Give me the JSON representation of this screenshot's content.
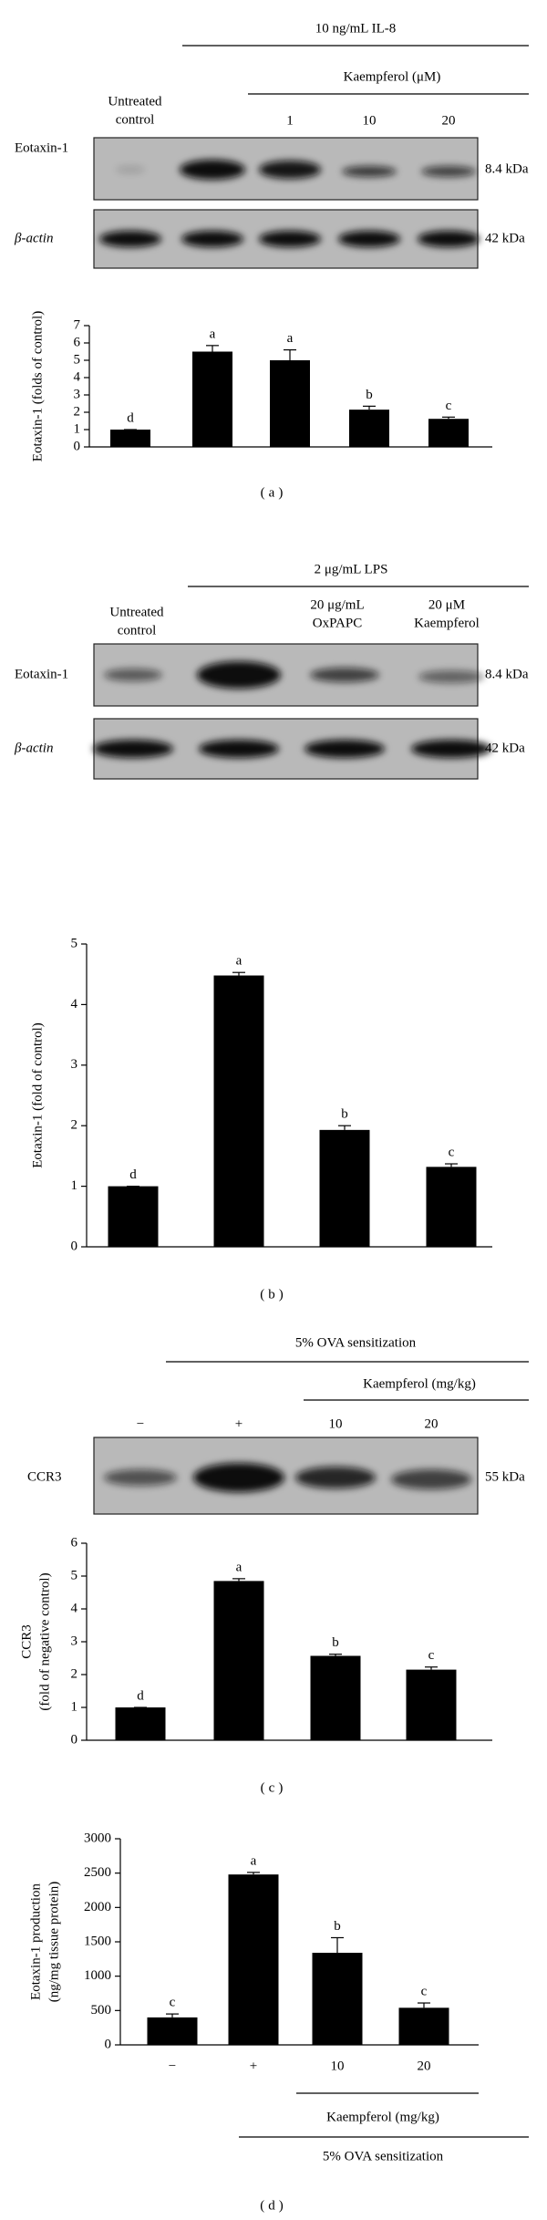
{
  "blots": [
    {
      "header": "10 ng/mL IL-8",
      "subheader": "Kaempferol (μM)",
      "lanes": [
        [
          "Untreated",
          "control"
        ],
        "1",
        "10",
        "20"
      ],
      "rows": [
        {
          "name": "Eotaxin-1",
          "size": "8.4 kDa"
        },
        {
          "name": "β-actin",
          "size": "42 kDa"
        }
      ]
    },
    {
      "header": "2 μg/mL LPS",
      "lanes": [
        [
          "Untreated",
          "control"
        ],
        [
          "20 μg/mL",
          "OxPAPC"
        ],
        [
          "20 μM",
          "Kaempferol"
        ]
      ],
      "rows": [
        {
          "name": "Eotaxin-1",
          "size": "8.4 kDa"
        },
        {
          "name": "β-actin",
          "size": "42 kDa"
        }
      ]
    },
    {
      "header": "5% OVA sensitization",
      "subheader": "Kaempferol (mg/kg)",
      "lanes": [
        "−",
        "+",
        "10",
        "20"
      ],
      "rows": [
        {
          "name": "CCR3",
          "size": "55 kDa"
        }
      ]
    }
  ],
  "chart_data": [
    {
      "type": "bar",
      "ylabel": "Eotaxin-1 (folds of control)",
      "categories": [
        null,
        null,
        null,
        null,
        null
      ],
      "values": [
        1,
        5.5,
        5.0,
        2.15,
        1.62
      ],
      "errors": [
        0,
        0.35,
        0.6,
        0.2,
        0.1
      ],
      "letters": [
        "d",
        "a",
        "a",
        "b",
        "c"
      ],
      "ylim": [
        0,
        7
      ],
      "yticks": [
        0,
        1,
        2,
        3,
        4,
        5,
        6,
        7
      ],
      "color": "#000000",
      "caption": "(a)"
    },
    {
      "type": "bar",
      "ylabel": "Eotaxin-1 (fold of control)",
      "categories": [
        null,
        null,
        null,
        null
      ],
      "values": [
        1,
        4.48,
        1.93,
        1.32
      ],
      "errors": [
        0,
        0.05,
        0.07,
        0.05
      ],
      "letters": [
        "d",
        "a",
        "b",
        "c"
      ],
      "ylim": [
        0,
        5
      ],
      "yticks": [
        0,
        1,
        2,
        3,
        4,
        5
      ],
      "color": "#000000",
      "caption": "(b)"
    },
    {
      "type": "bar",
      "ylabel": [
        "CCR3",
        "(fold of negative control)"
      ],
      "categories": [
        null,
        null,
        null,
        null
      ],
      "values": [
        1,
        4.85,
        2.57,
        2.15
      ],
      "errors": [
        0,
        0.07,
        0.05,
        0.08
      ],
      "letters": [
        "d",
        "a",
        "b",
        "c"
      ],
      "ylim": [
        0,
        6
      ],
      "yticks": [
        0,
        1,
        2,
        3,
        4,
        5,
        6
      ],
      "color": "#000000",
      "caption": "(c)"
    },
    {
      "type": "bar",
      "ylabel": [
        "Eotaxin-1 production",
        "(ng/mg tissue protein)"
      ],
      "categories": [
        "−",
        "+",
        "10",
        "20"
      ],
      "values": [
        400,
        2480,
        1340,
        540
      ],
      "errors": [
        50,
        30,
        220,
        70
      ],
      "letters": [
        "c",
        "a",
        "b",
        "c"
      ],
      "ylim": [
        0,
        3000
      ],
      "yticks": [
        0,
        500,
        1000,
        1500,
        2000,
        2500,
        3000
      ],
      "color": "#000000",
      "annotations": [
        "Kaempferol (mg/kg)",
        "5% OVA sensitization"
      ],
      "caption": "(d)"
    }
  ]
}
